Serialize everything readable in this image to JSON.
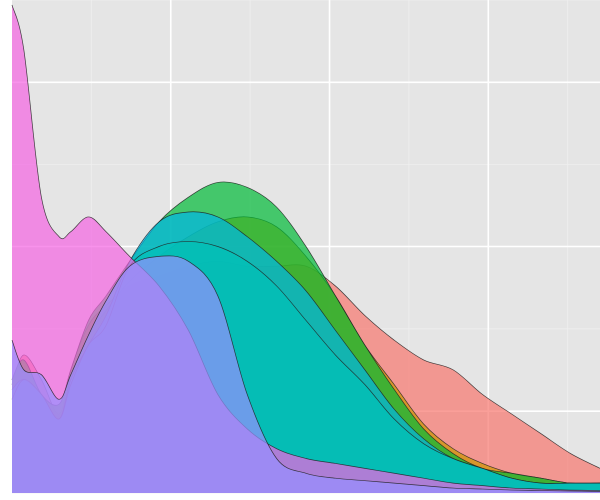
{
  "chart_data": {
    "type": "area",
    "title": "",
    "xlabel": "",
    "ylabel": "",
    "grid": true,
    "legend": "none",
    "background_color": "#e5e5e5",
    "grid_major_color": "#ffffff",
    "grid_minor_color": "#efefef",
    "outline_color": "#222222",
    "fill_opacity": 0.7,
    "xlim": [
      0,
      1
    ],
    "ylim": [
      0,
      1
    ],
    "x_grid_major": [
      0.27,
      0.54,
      0.81
    ],
    "x_grid_minor": [
      0.135,
      0.405,
      0.675,
      0.945
    ],
    "y_grid_major": [
      0.166,
      0.5,
      0.833
    ],
    "y_grid_minor": [
      0.0,
      0.333,
      0.666,
      1.0
    ],
    "x": [
      0.0,
      0.02,
      0.05,
      0.08,
      0.1,
      0.13,
      0.16,
      0.2,
      0.25,
      0.3,
      0.35,
      0.4,
      0.45,
      0.5,
      0.55,
      0.6,
      0.65,
      0.7,
      0.75,
      0.8,
      0.85,
      0.9,
      0.95,
      1.0
    ],
    "series": [
      {
        "color": "#f8766d",
        "values": [
          0.22,
          0.28,
          0.23,
          0.16,
          0.25,
          0.34,
          0.38,
          0.42,
          0.44,
          0.46,
          0.47,
          0.46,
          0.46,
          0.46,
          0.42,
          0.36,
          0.31,
          0.27,
          0.25,
          0.2,
          0.16,
          0.12,
          0.08,
          0.05
        ]
      },
      {
        "color": "#cd9600",
        "values": [
          0.23,
          0.27,
          0.2,
          0.18,
          0.24,
          0.32,
          0.37,
          0.43,
          0.48,
          0.52,
          0.55,
          0.56,
          0.54,
          0.48,
          0.4,
          0.3,
          0.22,
          0.14,
          0.09,
          0.06,
          0.04,
          0.03,
          0.02,
          0.02
        ]
      },
      {
        "color": "#00ba38",
        "values": [
          0.23,
          0.27,
          0.2,
          0.18,
          0.25,
          0.35,
          0.4,
          0.47,
          0.55,
          0.6,
          0.63,
          0.62,
          0.58,
          0.5,
          0.4,
          0.3,
          0.21,
          0.13,
          0.08,
          0.05,
          0.04,
          0.03,
          0.02,
          0.02
        ]
      },
      {
        "color": "#00b7e6",
        "values": [
          0.21,
          0.23,
          0.2,
          0.15,
          0.23,
          0.3,
          0.36,
          0.47,
          0.55,
          0.57,
          0.56,
          0.52,
          0.47,
          0.41,
          0.33,
          0.25,
          0.17,
          0.11,
          0.07,
          0.05,
          0.03,
          0.02,
          0.02,
          0.02
        ]
      },
      {
        "color": "#00c0b8",
        "values": [
          0.19,
          0.23,
          0.2,
          0.15,
          0.22,
          0.3,
          0.34,
          0.46,
          0.5,
          0.51,
          0.5,
          0.47,
          0.42,
          0.35,
          0.28,
          0.22,
          0.15,
          0.1,
          0.07,
          0.05,
          0.03,
          0.02,
          0.02,
          0.02
        ]
      },
      {
        "color": "#f564e3",
        "values": [
          0.99,
          0.9,
          0.6,
          0.52,
          0.53,
          0.56,
          0.53,
          0.48,
          0.42,
          0.33,
          0.2,
          0.13,
          0.09,
          0.07,
          0.06,
          0.05,
          0.04,
          0.03,
          0.02,
          0.015,
          0.01,
          0.008,
          0.006,
          0.005
        ]
      },
      {
        "color": "#9590ff",
        "values": [
          0.31,
          0.25,
          0.24,
          0.19,
          0.24,
          0.32,
          0.39,
          0.46,
          0.48,
          0.47,
          0.4,
          0.2,
          0.07,
          0.04,
          0.03,
          0.025,
          0.02,
          0.015,
          0.01,
          0.008,
          0.006,
          0.005,
          0.004,
          0.003
        ]
      }
    ]
  }
}
